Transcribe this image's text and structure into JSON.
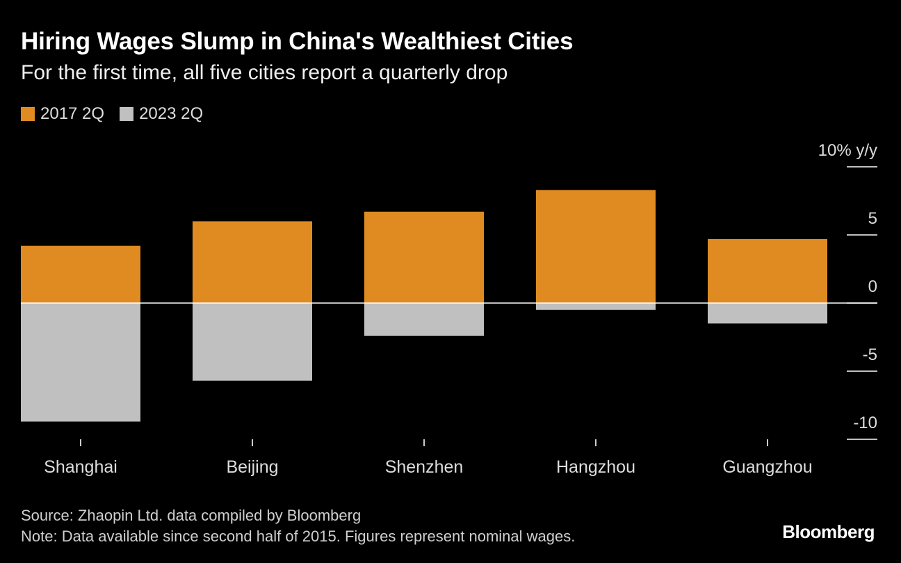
{
  "chart_data": {
    "type": "bar",
    "title": "Hiring Wages Slump in China's Wealthiest Cities",
    "subtitle": "For the first time, all five cities report a quarterly drop",
    "categories": [
      "Shanghai",
      "Beijing",
      "Shenzhen",
      "Hangzhou",
      "Guangzhou"
    ],
    "series": [
      {
        "name": "2017 2Q",
        "color": "#e08b22",
        "values": [
          4.2,
          6.0,
          6.7,
          8.3,
          4.7
        ]
      },
      {
        "name": "2023 2Q",
        "color": "#c0c0c0",
        "values": [
          -8.7,
          -5.7,
          -2.4,
          -0.5,
          -1.5
        ]
      }
    ],
    "y_ticks": [
      {
        "value": 10,
        "label": "10% y/y"
      },
      {
        "value": 5,
        "label": "5"
      },
      {
        "value": 0,
        "label": "0"
      },
      {
        "value": -5,
        "label": "-5"
      },
      {
        "value": -10,
        "label": "-10"
      }
    ],
    "ylim": [
      -10,
      10
    ],
    "legend_position": "top-left",
    "grid": false
  },
  "source": "Source: Zhaopin Ltd. data compiled by Bloomberg",
  "note": "Note: Data available since second half of 2015. Figures represent nominal wages.",
  "brand": "Bloomberg"
}
